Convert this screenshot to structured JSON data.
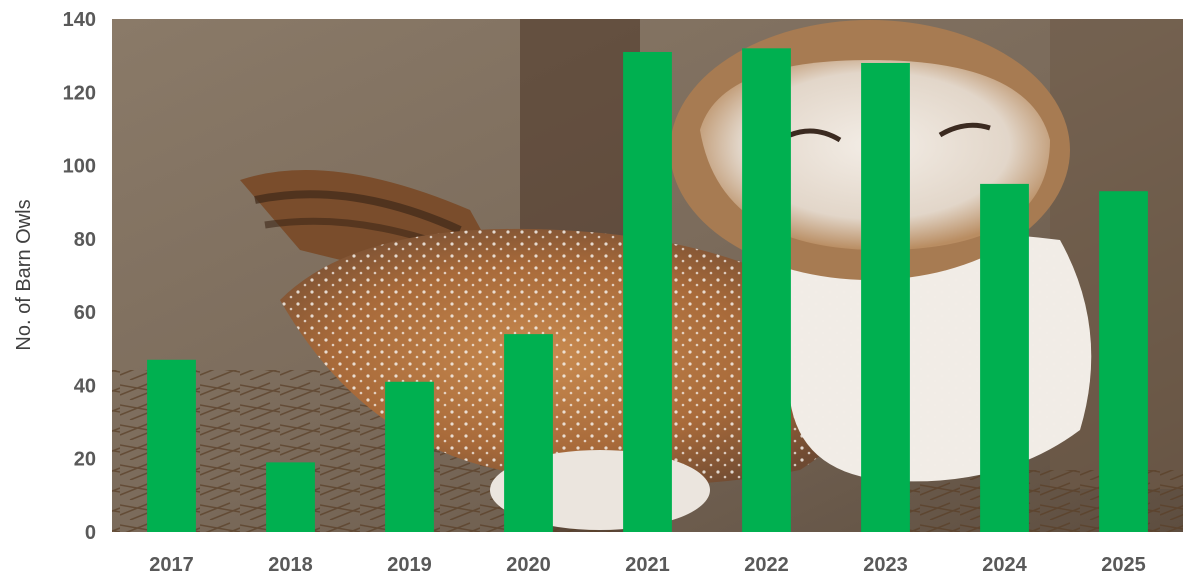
{
  "chart_data": {
    "type": "bar",
    "title": "",
    "xlabel": "",
    "ylabel": "No. of Barn Owls",
    "categories": [
      "2017",
      "2018",
      "2019",
      "2020",
      "2021",
      "2022",
      "2023",
      "2024",
      "2025"
    ],
    "values": [
      47,
      19,
      41,
      54,
      131,
      132,
      128,
      95,
      93
    ],
    "ylim": [
      0,
      140
    ],
    "yticks": [
      "0",
      "20",
      "40",
      "60",
      "80",
      "100",
      "120",
      "140"
    ],
    "grid": false,
    "legend": "none",
    "bar_color": "#00b050",
    "background_image": "barn-owl-photo"
  }
}
